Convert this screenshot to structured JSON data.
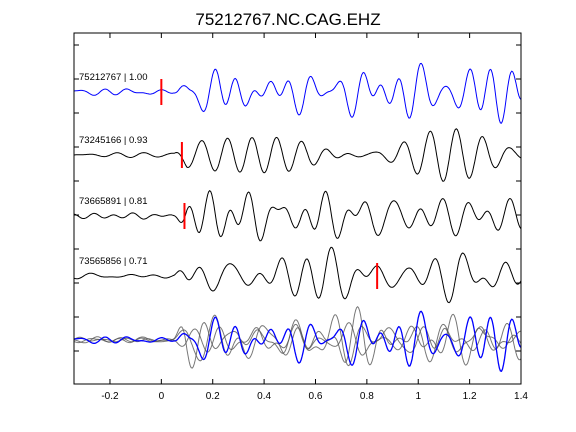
{
  "chart_data": {
    "type": "line",
    "title": "75212767.NC.CAG.EHZ",
    "xlabel": "",
    "ylabel": "",
    "xlim": [
      -0.34,
      1.4
    ],
    "xticks": [
      -0.2,
      0,
      0.2,
      0.4,
      0.6,
      0.8,
      1.0,
      1.2,
      1.4
    ],
    "xtick_labels": [
      "-0.2",
      "0",
      "0.2",
      "0.4",
      "0.6",
      "0.8",
      "1",
      "1.2",
      "1.4"
    ],
    "grid": false,
    "traces": [
      {
        "id": "75212767",
        "label": "75212767 | 1.00",
        "correlation": 1.0,
        "pick_time": 0.0,
        "color": "#0000ff",
        "seed": 1
      },
      {
        "id": "73245166",
        "label": "73245166 | 0.93",
        "correlation": 0.93,
        "pick_time": 0.08,
        "color": "#000000",
        "seed": 2
      },
      {
        "id": "73665891",
        "label": "73665891 | 0.81",
        "correlation": 0.81,
        "pick_time": 0.09,
        "color": "#000000",
        "seed": 3
      },
      {
        "id": "73565856",
        "label": "73565856 | 0.71",
        "correlation": 0.71,
        "pick_time": 0.84,
        "color": "#000000",
        "seed": 4
      }
    ],
    "stack": {
      "description_visible": false,
      "reference_color": "#0000ff",
      "overlay_color": "#555555"
    },
    "colors": {
      "reference": "#0000ff",
      "trace": "#000000",
      "pick": "#ff0000",
      "overlay": "#555555"
    }
  }
}
